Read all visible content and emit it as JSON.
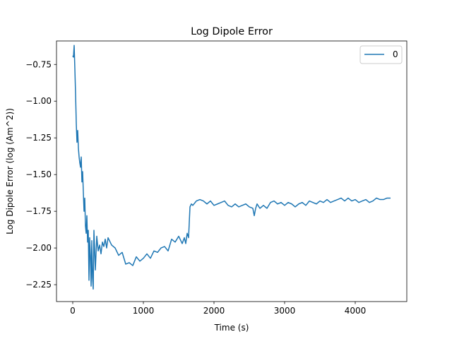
{
  "chart_data": {
    "type": "line",
    "title": "Log Dipole Error",
    "xlabel": "Time (s)",
    "ylabel": "Log Dipole Error (log (Am^2))",
    "xlim": [
      -230,
      4730
    ],
    "ylim": [
      -2.365,
      -0.59
    ],
    "xticks": [
      0,
      1000,
      2000,
      3000,
      4000
    ],
    "xtick_labels": [
      "0",
      "1000",
      "2000",
      "3000",
      "4000"
    ],
    "yticks": [
      -2.25,
      -2.0,
      -1.75,
      -1.5,
      -1.25,
      -1.0,
      -0.75
    ],
    "ytick_labels": [
      "−2.25",
      "−2.00",
      "−1.75",
      "−1.50",
      "−1.25",
      "−1.00",
      "−0.75"
    ],
    "grid": false,
    "legend": {
      "placement": "upper right",
      "entries": [
        "0"
      ]
    },
    "series": [
      {
        "name": "0",
        "color": "#1f77b4",
        "x": [
          0,
          10,
          20,
          30,
          40,
          50,
          60,
          70,
          80,
          90,
          100,
          110,
          120,
          130,
          140,
          150,
          160,
          170,
          180,
          190,
          200,
          210,
          220,
          230,
          240,
          250,
          260,
          270,
          280,
          290,
          300,
          320,
          340,
          360,
          380,
          400,
          420,
          440,
          460,
          480,
          500,
          550,
          600,
          650,
          700,
          750,
          800,
          850,
          900,
          950,
          1000,
          1050,
          1100,
          1150,
          1200,
          1250,
          1300,
          1350,
          1400,
          1450,
          1500,
          1550,
          1580,
          1600,
          1620,
          1640,
          1660,
          1680,
          1700,
          1750,
          1800,
          1850,
          1900,
          1950,
          2000,
          2050,
          2100,
          2150,
          2200,
          2250,
          2300,
          2350,
          2400,
          2450,
          2500,
          2550,
          2570,
          2590,
          2610,
          2650,
          2700,
          2750,
          2800,
          2850,
          2900,
          2950,
          3000,
          3050,
          3100,
          3150,
          3200,
          3250,
          3300,
          3350,
          3400,
          3450,
          3500,
          3550,
          3600,
          3650,
          3700,
          3750,
          3800,
          3850,
          3900,
          3950,
          4000,
          4050,
          4100,
          4150,
          4200,
          4250,
          4300,
          4350,
          4400,
          4450,
          4500
        ],
        "values": [
          -0.69,
          -0.7,
          -0.62,
          -0.78,
          -0.95,
          -1.15,
          -1.28,
          -1.2,
          -1.32,
          -1.38,
          -1.42,
          -1.45,
          -1.38,
          -1.55,
          -1.48,
          -1.62,
          -1.75,
          -1.66,
          -1.85,
          -1.9,
          -1.78,
          -1.96,
          -1.88,
          -2.22,
          -1.93,
          -2.05,
          -2.26,
          -1.95,
          -2.2,
          -2.28,
          -1.88,
          -2.15,
          -1.92,
          -2.02,
          -1.98,
          -2.04,
          -1.96,
          -1.99,
          -1.94,
          -2.0,
          -1.93,
          -1.98,
          -2.0,
          -2.05,
          -2.03,
          -2.11,
          -2.1,
          -2.12,
          -2.06,
          -2.09,
          -2.07,
          -2.04,
          -2.07,
          -2.02,
          -2.03,
          -2.0,
          -1.99,
          -2.02,
          -1.94,
          -1.96,
          -1.92,
          -1.97,
          -1.93,
          -1.97,
          -1.9,
          -1.93,
          -1.72,
          -1.7,
          -1.71,
          -1.68,
          -1.67,
          -1.68,
          -1.7,
          -1.68,
          -1.71,
          -1.7,
          -1.69,
          -1.68,
          -1.71,
          -1.72,
          -1.7,
          -1.72,
          -1.71,
          -1.7,
          -1.72,
          -1.73,
          -1.78,
          -1.73,
          -1.7,
          -1.73,
          -1.71,
          -1.73,
          -1.69,
          -1.68,
          -1.7,
          -1.69,
          -1.71,
          -1.69,
          -1.7,
          -1.72,
          -1.7,
          -1.69,
          -1.71,
          -1.68,
          -1.69,
          -1.7,
          -1.68,
          -1.69,
          -1.67,
          -1.69,
          -1.68,
          -1.67,
          -1.66,
          -1.68,
          -1.66,
          -1.68,
          -1.67,
          -1.69,
          -1.68,
          -1.67,
          -1.69,
          -1.68,
          -1.66,
          -1.67,
          -1.67,
          -1.66,
          -1.66
        ]
      }
    ]
  }
}
